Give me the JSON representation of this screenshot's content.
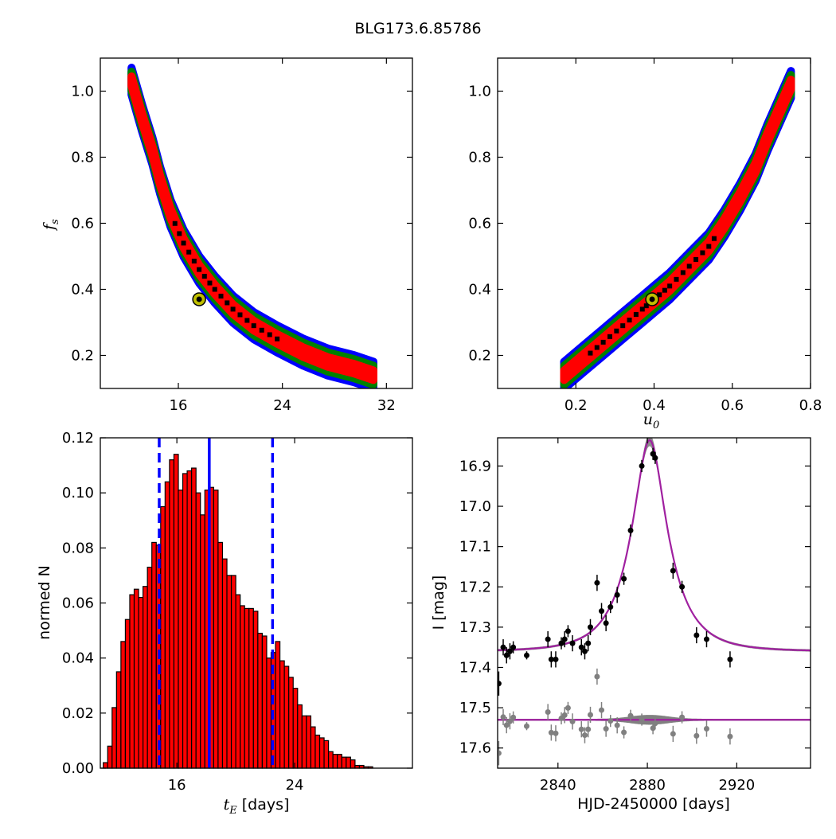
{
  "figure": {
    "title": "BLG173.6.85786"
  },
  "chart_data": [
    {
      "id": "tE_fs",
      "type": "heatmap",
      "title": "",
      "xlabel": "",
      "ylabel_main": "f",
      "ylabel_sub": "s",
      "xlim": [
        10,
        34
      ],
      "ylim": [
        0.1,
        1.1
      ],
      "xticks": [
        {
          "v": 16,
          "label": "16"
        },
        {
          "v": 24,
          "label": "24"
        },
        {
          "v": 32,
          "label": "32"
        }
      ],
      "yticks": [
        {
          "v": 0.2,
          "label": "0.2"
        },
        {
          "v": 0.4,
          "label": "0.4"
        },
        {
          "v": 0.6,
          "label": "0.6"
        },
        {
          "v": 0.8,
          "label": "0.8"
        },
        {
          "v": 1.0,
          "label": "1.0"
        }
      ],
      "band_curve": [
        [
          12.4,
          1.03
        ],
        [
          13.2,
          0.92
        ],
        [
          14.0,
          0.82
        ],
        [
          14.6,
          0.73
        ],
        [
          15.4,
          0.63
        ],
        [
          16.4,
          0.54
        ],
        [
          17.6,
          0.46
        ],
        [
          18.8,
          0.4
        ],
        [
          20.2,
          0.34
        ],
        [
          21.8,
          0.29
        ],
        [
          23.6,
          0.25
        ],
        [
          25.6,
          0.21
        ],
        [
          27.5,
          0.18
        ],
        [
          29.5,
          0.16
        ],
        [
          31.0,
          0.14
        ]
      ],
      "best_fit": {
        "x": 17.6,
        "y": 0.37
      },
      "colors": {
        "outer": "#0000ff",
        "middle": "#008000",
        "inner": "#ff0000",
        "best": "#000000",
        "marker": "#bfbf00"
      }
    },
    {
      "id": "u0_fs",
      "type": "heatmap",
      "title": "",
      "xlabel_main": "u",
      "xlabel_sub": "0",
      "ylabel": "",
      "xlim": [
        0,
        0.8
      ],
      "ylim": [
        0.1,
        1.1
      ],
      "xticks": [
        {
          "v": 0.2,
          "label": "0.2"
        },
        {
          "v": 0.4,
          "label": "0.4"
        },
        {
          "v": 0.6,
          "label": "0.6"
        },
        {
          "v": 0.8,
          "label": "0.8"
        }
      ],
      "yticks": [
        {
          "v": 0.2,
          "label": "0.2"
        },
        {
          "v": 0.4,
          "label": "0.4"
        },
        {
          "v": 0.6,
          "label": "0.6"
        },
        {
          "v": 0.8,
          "label": "0.8"
        },
        {
          "v": 1.0,
          "label": "1.0"
        }
      ],
      "band_curve": [
        [
          0.17,
          0.14
        ],
        [
          0.22,
          0.19
        ],
        [
          0.27,
          0.24
        ],
        [
          0.32,
          0.29
        ],
        [
          0.37,
          0.34
        ],
        [
          0.4,
          0.37
        ],
        [
          0.44,
          0.41
        ],
        [
          0.49,
          0.47
        ],
        [
          0.54,
          0.53
        ],
        [
          0.58,
          0.6
        ],
        [
          0.62,
          0.68
        ],
        [
          0.66,
          0.77
        ],
        [
          0.69,
          0.86
        ],
        [
          0.72,
          0.94
        ],
        [
          0.75,
          1.02
        ]
      ],
      "best_fit": {
        "x": 0.395,
        "y": 0.37
      },
      "colors": {
        "outer": "#0000ff",
        "middle": "#008000",
        "inner": "#ff0000",
        "best": "#000000",
        "marker": "#bfbf00"
      }
    },
    {
      "id": "tE_hist",
      "type": "bar",
      "title": "",
      "xlabel_main": "t",
      "xlabel_sub": "E",
      "xlabel_unit": "[days]",
      "ylabel": "normed N",
      "xlim": [
        10.8,
        32.0
      ],
      "ylim": [
        0,
        0.12
      ],
      "bin_start": 11.0,
      "bin_width": 0.3,
      "values": [
        0.002,
        0.008,
        0.022,
        0.035,
        0.046,
        0.054,
        0.063,
        0.065,
        0.062,
        0.066,
        0.073,
        0.082,
        0.081,
        0.095,
        0.104,
        0.112,
        0.114,
        0.101,
        0.107,
        0.108,
        0.109,
        0.1,
        0.092,
        0.101,
        0.102,
        0.101,
        0.082,
        0.076,
        0.07,
        0.07,
        0.063,
        0.059,
        0.058,
        0.058,
        0.057,
        0.049,
        0.048,
        0.04,
        0.042,
        0.046,
        0.039,
        0.037,
        0.033,
        0.029,
        0.023,
        0.019,
        0.019,
        0.015,
        0.012,
        0.011,
        0.01,
        0.006,
        0.005,
        0.005,
        0.004,
        0.004,
        0.003,
        0.001,
        0.001,
        0.0005,
        0.0005
      ],
      "vlines": [
        {
          "x": 14.8,
          "style": "dashed"
        },
        {
          "x": 18.2,
          "style": "solid"
        },
        {
          "x": 22.5,
          "style": "dashed"
        }
      ],
      "xticks": [
        {
          "v": 16,
          "label": "16"
        },
        {
          "v": 24,
          "label": "24"
        }
      ],
      "yticks": [
        {
          "v": 0.0,
          "label": "0.00"
        },
        {
          "v": 0.02,
          "label": "0.02"
        },
        {
          "v": 0.04,
          "label": "0.04"
        },
        {
          "v": 0.06,
          "label": "0.06"
        },
        {
          "v": 0.08,
          "label": "0.08"
        },
        {
          "v": 0.1,
          "label": "0.10"
        },
        {
          "v": 0.12,
          "label": "0.12"
        }
      ],
      "colors": {
        "bar": "#ff0000",
        "edge": "#000000",
        "vline": "#0000ff"
      }
    },
    {
      "id": "lightcurve",
      "type": "scatter",
      "title": "",
      "xlabel": "HJD-2450000 [days]",
      "ylabel": "I [mag]",
      "xlim": [
        2813,
        2953
      ],
      "ylim": [
        17.65,
        16.83
      ],
      "xticks": [
        {
          "v": 2840,
          "label": "2840"
        },
        {
          "v": 2880,
          "label": "2880"
        },
        {
          "v": 2920,
          "label": "2920"
        }
      ],
      "yticks": [
        {
          "v": 16.9,
          "label": "16.9"
        },
        {
          "v": 17.0,
          "label": "17.0"
        },
        {
          "v": 17.1,
          "label": "17.1"
        },
        {
          "v": 17.2,
          "label": "17.2"
        },
        {
          "v": 17.3,
          "label": "17.3"
        },
        {
          "v": 17.4,
          "label": "17.4"
        },
        {
          "v": 17.5,
          "label": "17.5"
        },
        {
          "v": 17.6,
          "label": "17.6"
        }
      ],
      "model": {
        "t0": 2881.0,
        "tE": 17.6,
        "u0": 0.395,
        "fs": 0.37,
        "I0": 17.36
      },
      "residual_baseline": 17.53,
      "data": [
        {
          "x": 2813.5,
          "y": 17.44,
          "err": 0.03
        },
        {
          "x": 2815.5,
          "y": 17.35,
          "err": 0.02
        },
        {
          "x": 2817.0,
          "y": 17.37,
          "err": 0.02
        },
        {
          "x": 2818.5,
          "y": 17.36,
          "err": 0.02
        },
        {
          "x": 2820.0,
          "y": 17.35,
          "err": 0.015
        },
        {
          "x": 2826.0,
          "y": 17.37,
          "err": 0.01
        },
        {
          "x": 2835.5,
          "y": 17.33,
          "err": 0.02
        },
        {
          "x": 2837.0,
          "y": 17.38,
          "err": 0.02
        },
        {
          "x": 2839.0,
          "y": 17.38,
          "err": 0.02
        },
        {
          "x": 2841.5,
          "y": 17.34,
          "err": 0.015
        },
        {
          "x": 2843.0,
          "y": 17.33,
          "err": 0.02
        },
        {
          "x": 2844.5,
          "y": 17.31,
          "err": 0.015
        },
        {
          "x": 2846.5,
          "y": 17.34,
          "err": 0.02
        },
        {
          "x": 2850.5,
          "y": 17.35,
          "err": 0.02
        },
        {
          "x": 2852.0,
          "y": 17.36,
          "err": 0.02
        },
        {
          "x": 2853.5,
          "y": 17.34,
          "err": 0.02
        },
        {
          "x": 2854.5,
          "y": 17.3,
          "err": 0.02
        },
        {
          "x": 2857.5,
          "y": 17.19,
          "err": 0.02
        },
        {
          "x": 2859.5,
          "y": 17.26,
          "err": 0.02
        },
        {
          "x": 2861.5,
          "y": 17.29,
          "err": 0.02
        },
        {
          "x": 2863.5,
          "y": 17.25,
          "err": 0.015
        },
        {
          "x": 2866.5,
          "y": 17.22,
          "err": 0.02
        },
        {
          "x": 2869.5,
          "y": 17.18,
          "err": 0.015
        },
        {
          "x": 2872.5,
          "y": 17.06,
          "err": 0.015
        },
        {
          "x": 2877.5,
          "y": 16.9,
          "err": 0.015
        },
        {
          "x": 2882.5,
          "y": 16.87,
          "err": 0.015
        },
        {
          "x": 2883.5,
          "y": 16.88,
          "err": 0.015
        },
        {
          "x": 2891.5,
          "y": 17.16,
          "err": 0.02
        },
        {
          "x": 2895.5,
          "y": 17.2,
          "err": 0.015
        },
        {
          "x": 2902.0,
          "y": 17.32,
          "err": 0.02
        },
        {
          "x": 2906.5,
          "y": 17.33,
          "err": 0.02
        },
        {
          "x": 2917.0,
          "y": 17.38,
          "err": 0.02
        }
      ],
      "colors": {
        "data": "#000000",
        "residual": "#808080",
        "model": "#a020a0",
        "model_band": "#808080"
      }
    }
  ]
}
